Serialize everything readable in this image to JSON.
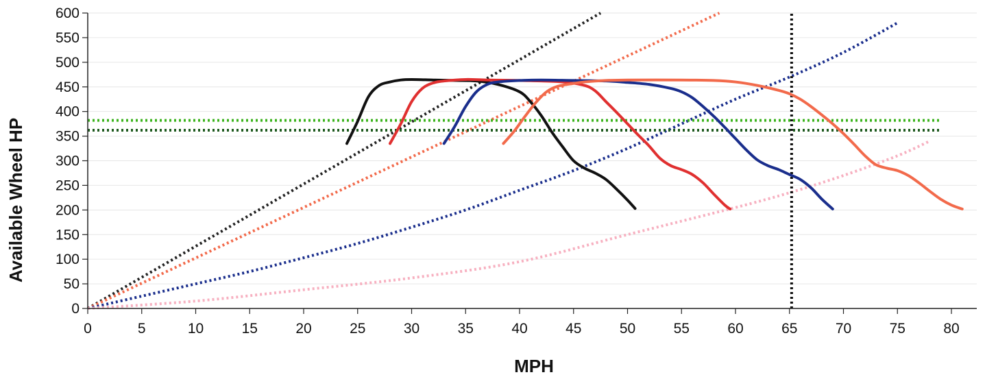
{
  "chart_data": {
    "type": "line",
    "title": "",
    "xlabel": "MPH",
    "ylabel": "Available Wheel HP",
    "xlim": [
      0,
      83
    ],
    "ylim": [
      0,
      600
    ],
    "x_ticks": [
      "0",
      "5",
      "10",
      "15",
      "20",
      "25",
      "30",
      "35",
      "40",
      "45",
      "50",
      "55",
      "60",
      "65",
      "70",
      "75",
      "80"
    ],
    "y_ticks": [
      "0",
      "50",
      "100",
      "150",
      "200",
      "250",
      "300",
      "350",
      "400",
      "450",
      "500",
      "550",
      "600"
    ],
    "grid": "horizontal",
    "legend": "none",
    "series": [
      {
        "style": "solid",
        "color": "#111111",
        "points": [
          [
            24,
            335
          ],
          [
            25,
            380
          ],
          [
            26,
            430
          ],
          [
            27,
            453
          ],
          [
            28,
            460
          ],
          [
            29,
            464
          ],
          [
            30,
            465
          ],
          [
            32,
            464
          ],
          [
            34,
            463
          ],
          [
            36,
            462
          ],
          [
            38,
            455
          ],
          [
            40,
            440
          ],
          [
            41,
            420
          ],
          [
            42,
            392
          ],
          [
            43,
            358
          ],
          [
            44,
            328
          ],
          [
            45,
            300
          ],
          [
            46,
            285
          ],
          [
            47,
            275
          ],
          [
            48,
            262
          ],
          [
            49,
            242
          ],
          [
            50,
            220
          ],
          [
            50.7,
            203
          ]
        ]
      },
      {
        "style": "solid",
        "color": "#e03030",
        "points": [
          [
            28,
            335
          ],
          [
            29,
            375
          ],
          [
            30,
            420
          ],
          [
            31,
            447
          ],
          [
            32,
            458
          ],
          [
            33,
            462
          ],
          [
            35,
            465
          ],
          [
            37,
            464
          ],
          [
            40,
            463
          ],
          [
            42,
            462
          ],
          [
            44,
            460
          ],
          [
            46,
            453
          ],
          [
            47,
            442
          ],
          [
            48,
            420
          ],
          [
            49,
            398
          ],
          [
            50,
            375
          ],
          [
            51,
            352
          ],
          [
            52,
            330
          ],
          [
            53,
            305
          ],
          [
            54,
            290
          ],
          [
            55,
            282
          ],
          [
            56,
            272
          ],
          [
            57,
            255
          ],
          [
            58,
            232
          ],
          [
            59,
            210
          ],
          [
            59.5,
            202
          ]
        ]
      },
      {
        "style": "solid",
        "color": "#1a2e8c",
        "points": [
          [
            33,
            335
          ],
          [
            34,
            370
          ],
          [
            35,
            410
          ],
          [
            36,
            440
          ],
          [
            37,
            455
          ],
          [
            38,
            460
          ],
          [
            40,
            463
          ],
          [
            42,
            464
          ],
          [
            45,
            463
          ],
          [
            48,
            462
          ],
          [
            50,
            459
          ],
          [
            52,
            455
          ],
          [
            54,
            447
          ],
          [
            55,
            440
          ],
          [
            56,
            428
          ],
          [
            57,
            410
          ],
          [
            58,
            390
          ],
          [
            59,
            368
          ],
          [
            60,
            345
          ],
          [
            61,
            322
          ],
          [
            62,
            302
          ],
          [
            63,
            290
          ],
          [
            64,
            282
          ],
          [
            65,
            272
          ],
          [
            66,
            262
          ],
          [
            67,
            245
          ],
          [
            68,
            222
          ],
          [
            69,
            202
          ]
        ]
      },
      {
        "style": "solid",
        "color": "#f26a4b",
        "points": [
          [
            38.5,
            335
          ],
          [
            39.5,
            360
          ],
          [
            40.5,
            390
          ],
          [
            41.5,
            418
          ],
          [
            42.5,
            440
          ],
          [
            43.5,
            451
          ],
          [
            45,
            457
          ],
          [
            46,
            460
          ],
          [
            48,
            463
          ],
          [
            50,
            464
          ],
          [
            55,
            464
          ],
          [
            58,
            463
          ],
          [
            60,
            460
          ],
          [
            62,
            453
          ],
          [
            64,
            443
          ],
          [
            65,
            436
          ],
          [
            66,
            425
          ],
          [
            67,
            410
          ],
          [
            68,
            393
          ],
          [
            69,
            375
          ],
          [
            70,
            355
          ],
          [
            71,
            333
          ],
          [
            72,
            310
          ],
          [
            73,
            292
          ],
          [
            74,
            285
          ],
          [
            75,
            280
          ],
          [
            76,
            270
          ],
          [
            77,
            255
          ],
          [
            78,
            238
          ],
          [
            79,
            222
          ],
          [
            80,
            210
          ],
          [
            81,
            202
          ]
        ]
      },
      {
        "style": "dotted",
        "color": "#222222",
        "points": [
          [
            0,
            0
          ],
          [
            47.5,
            600
          ]
        ]
      },
      {
        "style": "dotted",
        "color": "#f26a4b",
        "points": [
          [
            0,
            0
          ],
          [
            58.5,
            600
          ]
        ]
      },
      {
        "style": "dotted",
        "color": "#1a2e8c",
        "points": [
          [
            0,
            0
          ],
          [
            5,
            25
          ],
          [
            10,
            50
          ],
          [
            15,
            75
          ],
          [
            20,
            103
          ],
          [
            25,
            132
          ],
          [
            30,
            165
          ],
          [
            35,
            200
          ],
          [
            40,
            240
          ],
          [
            45,
            280
          ],
          [
            50,
            325
          ],
          [
            55,
            375
          ],
          [
            60,
            425
          ],
          [
            65,
            470
          ],
          [
            70,
            520
          ],
          [
            75,
            580
          ]
        ]
      },
      {
        "style": "dotted",
        "color": "#f7b0c0",
        "points": [
          [
            0,
            0
          ],
          [
            10,
            15
          ],
          [
            20,
            38
          ],
          [
            30,
            62
          ],
          [
            40,
            95
          ],
          [
            50,
            150
          ],
          [
            60,
            205
          ],
          [
            65,
            235
          ],
          [
            70,
            270
          ],
          [
            75,
            310
          ],
          [
            78,
            340
          ]
        ]
      },
      {
        "style": "dotted",
        "color": "#3cb31e",
        "points": [
          [
            0,
            382
          ],
          [
            79,
            382
          ]
        ]
      },
      {
        "style": "dotted",
        "color": "#1f5a1f",
        "points": [
          [
            0,
            362
          ],
          [
            79,
            362
          ]
        ]
      },
      {
        "style": "dotted",
        "color": "#111111",
        "points": [
          [
            65.2,
            0
          ],
          [
            65.2,
            600
          ]
        ]
      }
    ]
  }
}
